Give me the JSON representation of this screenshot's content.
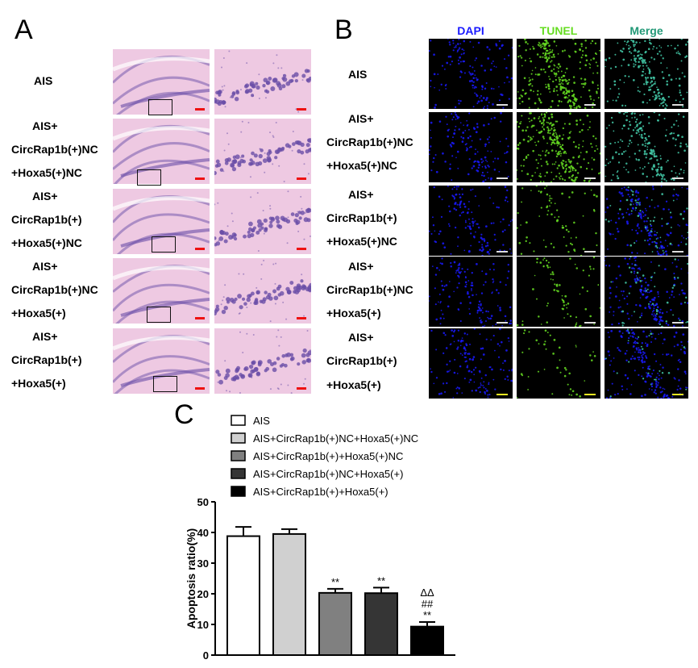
{
  "panels": {
    "a_letter": "A",
    "b_letter": "B",
    "c_letter": "C"
  },
  "groups": [
    {
      "lines": [
        "AIS"
      ]
    },
    {
      "lines": [
        "AIS+",
        "CircRap1b(+)NC",
        "+Hoxa5(+)NC"
      ]
    },
    {
      "lines": [
        "AIS+",
        "CircRap1b(+)",
        "+Hoxa5(+)NC"
      ]
    },
    {
      "lines": [
        "AIS+",
        "CircRap1b(+)NC",
        "+Hoxa5(+)"
      ]
    },
    {
      "lines": [
        "AIS+",
        "CircRap1b(+)",
        "+Hoxa5(+)"
      ]
    }
  ],
  "fluorescence_headers": {
    "dapi": "DAPI",
    "tunel": "TUNEL",
    "merge": "Merge"
  },
  "colors": {
    "dapi": "#1a1aff",
    "tunel": "#66dd22",
    "merge": "#229977",
    "scalebar_he": "#ee1111",
    "scalebar_fl": "#dddddd",
    "he_bg": "#eec9e2",
    "he_nuclei": "#6a4fa8"
  },
  "chart_data": {
    "type": "bar",
    "ylabel": "Apoptosis ratio(%)",
    "ylim": [
      0,
      50
    ],
    "yticks": [
      "0",
      "10",
      "20",
      "30",
      "40",
      "50"
    ],
    "legend_position": "top",
    "categories": [
      "AIS",
      "AIS+CircRap1b(+)NC+Hoxa5(+)NC",
      "AIS+CircRap1b(+)+Hoxa5(+)NC",
      "AIS+CircRap1b(+)NC+Hoxa5(+)",
      "AIS+CircRap1b(+)+Hoxa5(+)"
    ],
    "values": [
      38.8,
      39.5,
      20.3,
      20.2,
      9.3
    ],
    "errors": [
      3.0,
      1.6,
      1.3,
      1.8,
      1.5
    ],
    "fills": [
      "#ffffff",
      "#d0d0d0",
      "#808080",
      "#353535",
      "#000000"
    ],
    "annotations": [
      [],
      [],
      [
        "**"
      ],
      [
        "**"
      ],
      [
        "**",
        "##",
        "ΔΔ"
      ]
    ]
  }
}
